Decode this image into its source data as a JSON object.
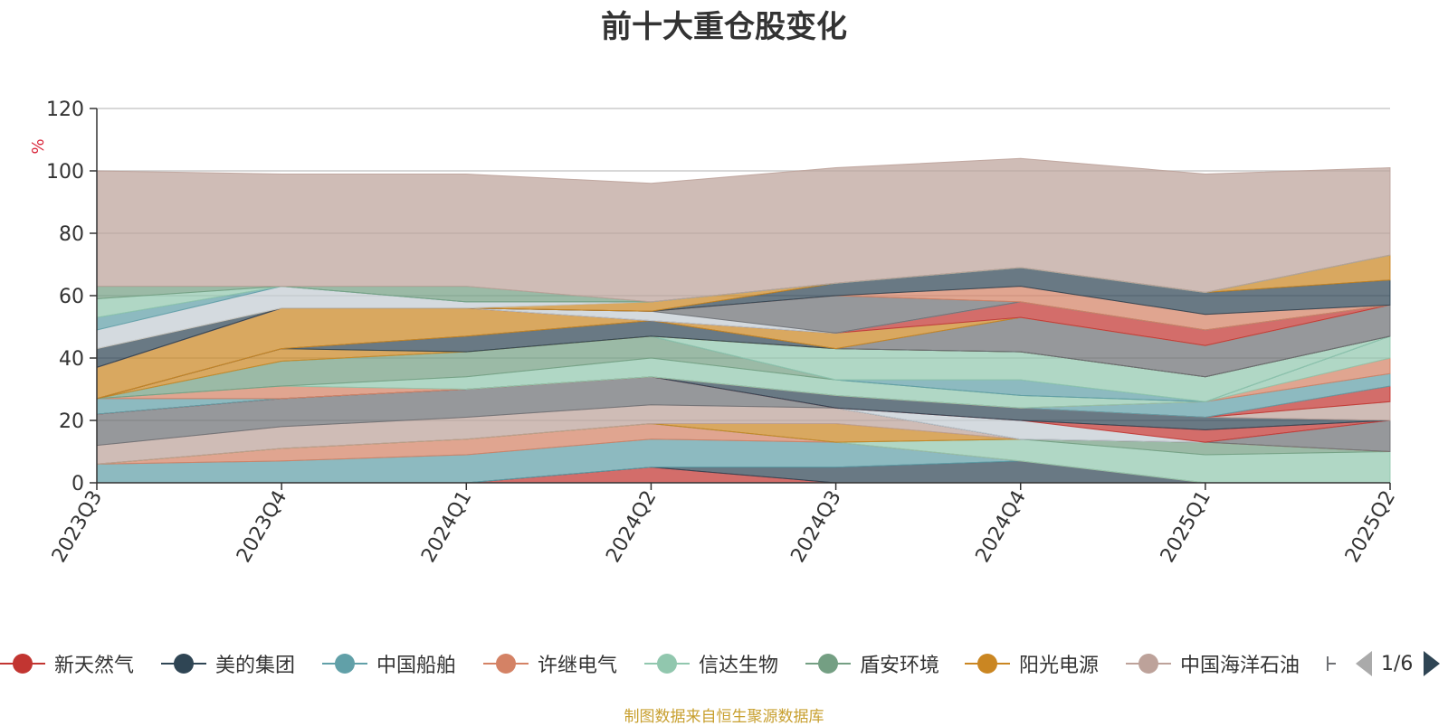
{
  "title": "前十大重仓股变化",
  "source_note": "制图数据来自恒生聚源数据库",
  "chart_data": {
    "type": "area",
    "stacked": true,
    "ylabel": "%",
    "ylim": [
      0,
      120
    ],
    "yticks": [
      0,
      20,
      40,
      60,
      80,
      100,
      120
    ],
    "grid": true,
    "categories": [
      "2023Q3",
      "2023Q4",
      "2024Q1",
      "2024Q2",
      "2024Q3",
      "2024Q4",
      "2025Q1",
      "2025Q2"
    ],
    "series": [
      {
        "name": "新天然气",
        "color": "#c23531",
        "values": [
          0,
          0,
          0,
          5,
          0,
          0,
          0,
          0
        ]
      },
      {
        "name": "美的集团",
        "color": "#2f4554",
        "values": [
          0,
          0,
          0,
          0,
          5,
          7,
          0,
          0
        ]
      },
      {
        "name": "中国船舶",
        "color": "#61a0a8",
        "values": [
          6,
          7,
          9,
          9,
          8,
          0,
          0,
          0
        ]
      },
      {
        "name": "许继电气",
        "color": "#d48265",
        "values": [
          0,
          4,
          5,
          5,
          0,
          0,
          0,
          0
        ]
      },
      {
        "name": "信达生物",
        "color": "#91c7ae",
        "values": [
          0,
          0,
          0,
          0,
          0,
          7,
          9,
          10
        ]
      },
      {
        "name": "盾安环境",
        "color": "#749f83",
        "values": [
          0,
          0,
          0,
          0,
          0,
          0,
          4,
          0
        ]
      },
      {
        "name": "阳光电源",
        "color": "#ca8622",
        "values": [
          0,
          0,
          0,
          0,
          6,
          0,
          0,
          0
        ]
      },
      {
        "name": "中国海洋石油",
        "color": "#bda29a",
        "values": [
          6,
          7,
          7,
          6,
          5,
          0,
          0,
          0
        ]
      },
      {
        "name": "",
        "color": "#6e7074",
        "values": [
          10,
          9,
          9,
          9,
          0,
          0,
          0,
          10
        ]
      },
      {
        "name": "",
        "color": "#546570",
        "values": [
          0,
          0,
          0,
          0,
          0,
          0,
          0,
          0
        ]
      },
      {
        "name": "",
        "color": "#c4ccd3",
        "values": [
          0,
          0,
          0,
          0,
          0,
          6,
          0,
          0
        ]
      },
      {
        "name": "",
        "color": "#c23531",
        "values": [
          0,
          0,
          0,
          0,
          0,
          0,
          4,
          0
        ]
      },
      {
        "name": "",
        "color": "#2f4554",
        "values": [
          0,
          0,
          0,
          0,
          4,
          4,
          4,
          0
        ]
      },
      {
        "name": "",
        "color": "#bda29a",
        "values": [
          0,
          0,
          0,
          0,
          0,
          0,
          0,
          6
        ]
      },
      {
        "name": "",
        "color": "#c23531",
        "values": [
          0,
          0,
          0,
          0,
          0,
          0,
          0,
          5
        ]
      },
      {
        "name": "",
        "color": "#61a0a8",
        "values": [
          5,
          0,
          0,
          0,
          0,
          0,
          5,
          4
        ]
      },
      {
        "name": "",
        "color": "#d48265",
        "values": [
          0,
          4,
          0,
          0,
          0,
          0,
          0,
          5
        ]
      },
      {
        "name": "",
        "color": "#91c7ae",
        "values": [
          0,
          0,
          4,
          6,
          5,
          4,
          0,
          7
        ]
      },
      {
        "name": "",
        "color": "#749f83",
        "values": [
          0,
          8,
          8,
          7,
          0,
          0,
          0,
          0
        ]
      },
      {
        "name": "",
        "color": "#61a0a8",
        "values": [
          0,
          0,
          0,
          0,
          0,
          5,
          0,
          0
        ]
      },
      {
        "name": "",
        "color": "#91c7ae",
        "values": [
          0,
          0,
          0,
          0,
          10,
          9,
          8,
          0
        ]
      },
      {
        "name": "",
        "color": "#ca8622",
        "values": [
          0,
          4,
          0,
          0,
          0,
          0,
          0,
          0
        ]
      },
      {
        "name": "",
        "color": "#2f4554",
        "values": [
          0,
          0,
          5,
          5,
          0,
          0,
          0,
          0
        ]
      },
      {
        "name": "",
        "color": "#6e7074",
        "values": [
          0,
          0,
          0,
          0,
          0,
          11,
          10,
          10
        ]
      },
      {
        "name": "",
        "color": "#ca8622",
        "values": [
          10,
          13,
          9,
          0,
          5,
          0,
          0,
          0
        ]
      },
      {
        "name": "",
        "color": "#c4ccd3",
        "values": [
          0,
          0,
          0,
          0,
          0,
          0,
          0,
          0
        ]
      },
      {
        "name": "",
        "color": "#c23531",
        "values": [
          0,
          0,
          0,
          0,
          0,
          5,
          5,
          0
        ]
      },
      {
        "name": "",
        "color": "#546570",
        "values": [
          0,
          0,
          0,
          0,
          0,
          0,
          0,
          0
        ]
      },
      {
        "name": "",
        "color": "#c4ccd3",
        "values": [
          0,
          0,
          0,
          3,
          0,
          0,
          0,
          0
        ]
      },
      {
        "name": "",
        "color": "#6e7074",
        "values": [
          0,
          0,
          0,
          0,
          12,
          0,
          0,
          0
        ]
      },
      {
        "name": "",
        "color": "#d48265",
        "values": [
          0,
          0,
          0,
          0,
          0,
          5,
          5,
          0
        ]
      },
      {
        "name": "",
        "color": "#2f4554",
        "values": [
          6,
          0,
          0,
          0,
          4,
          6,
          7,
          8
        ]
      },
      {
        "name": "",
        "color": "#ca8622",
        "values": [
          0,
          0,
          0,
          3,
          0,
          0,
          0,
          8
        ]
      },
      {
        "name": "",
        "color": "#c4ccd3",
        "values": [
          6,
          7,
          2,
          0,
          0,
          0,
          0,
          0
        ]
      },
      {
        "name": "",
        "color": "#61a0a8",
        "values": [
          4,
          0,
          0,
          0,
          0,
          0,
          0,
          0
        ]
      },
      {
        "name": "",
        "color": "#91c7ae",
        "values": [
          6,
          0,
          0,
          0,
          0,
          0,
          0,
          0
        ]
      },
      {
        "name": "",
        "color": "#749f83",
        "values": [
          4,
          0,
          5,
          0,
          0,
          0,
          0,
          0
        ]
      },
      {
        "name": "",
        "color": "#bda29a",
        "values": [
          37,
          36,
          36,
          38,
          37,
          35,
          38,
          28
        ]
      }
    ]
  },
  "legend": {
    "items": [
      {
        "name": "新天然气",
        "color": "#c23531"
      },
      {
        "name": "美的集团",
        "color": "#2f4554"
      },
      {
        "name": "中国船舶",
        "color": "#61a0a8"
      },
      {
        "name": "许继电气",
        "color": "#d48265"
      },
      {
        "name": "信达生物",
        "color": "#91c7ae"
      },
      {
        "name": "盾安环境",
        "color": "#749f83"
      },
      {
        "name": "阳光电源",
        "color": "#ca8622"
      },
      {
        "name": "中国海洋石油",
        "color": "#bda29a"
      }
    ],
    "page": "1/6"
  }
}
